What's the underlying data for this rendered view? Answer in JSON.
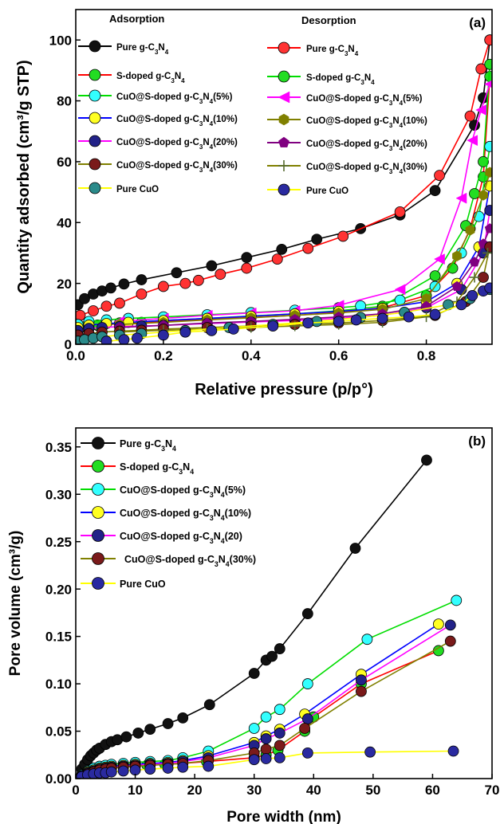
{
  "chart_data": [
    {
      "type": "line",
      "panel_label": "(a)",
      "xlabel": "Relative pressure (p/p°)",
      "ylabel": "Quantity adsorbed (cm³/g STP)",
      "xlim": [
        0,
        0.95
      ],
      "ylim": [
        0,
        110
      ],
      "xticks": [
        "0.0",
        "0.2",
        "0.4",
        "0.6",
        "0.8"
      ],
      "xtick_values": [
        0,
        0.2,
        0.4,
        0.6,
        0.8
      ],
      "yticks": [
        "0",
        "20",
        "40",
        "60",
        "80",
        "100"
      ],
      "ytick_values": [
        0,
        20,
        40,
        60,
        80,
        100
      ],
      "legend_headers": {
        "adsorption": "Adsorption",
        "desorption": "Desorption"
      },
      "legend_position": "top-left",
      "grid": false,
      "series": [
        {
          "name": "Pure g-C3N4",
          "branch": "Adsorption",
          "line_color": "#000000",
          "marker_color": "#111111",
          "marker": "circle",
          "x": [
            0.005,
            0.02,
            0.04,
            0.06,
            0.08,
            0.11,
            0.15,
            0.23,
            0.31,
            0.39,
            0.47,
            0.55,
            0.65,
            0.74,
            0.82,
            0.91,
            0.93,
            0.945
          ],
          "y": [
            13,
            15,
            16.5,
            17.5,
            18.5,
            19.8,
            21.2,
            23.5,
            25.8,
            28.5,
            31.2,
            34.5,
            38,
            42.5,
            50.5,
            72,
            81,
            100
          ]
        },
        {
          "name": "Pure g-C3N4",
          "branch": "Desorption",
          "line_color": "#ff0000",
          "marker_color": "#ff3333",
          "marker": "circle",
          "x": [
            0.01,
            0.04,
            0.07,
            0.1,
            0.15,
            0.2,
            0.25,
            0.28,
            0.33,
            0.39,
            0.46,
            0.53,
            0.61,
            0.74,
            0.83,
            0.9,
            0.925,
            0.945
          ],
          "y": [
            9.5,
            11,
            12.5,
            13.5,
            16.5,
            19,
            20,
            21,
            23,
            25,
            28,
            31.5,
            35.5,
            43.5,
            55.5,
            75,
            90.5,
            100
          ]
        },
        {
          "name": "S-doped g-C3N4",
          "branch": "Adsorption",
          "line_color": "#ff0000",
          "marker_color": "#22dd22",
          "marker": "circle",
          "x": [
            0.005,
            0.02,
            0.05,
            0.1,
            0.15,
            0.2,
            0.3,
            0.4,
            0.5,
            0.6,
            0.7,
            0.8,
            0.86,
            0.9,
            0.93,
            0.945
          ],
          "y": [
            5,
            5.8,
            6.2,
            6.8,
            7.2,
            7.5,
            8.2,
            8.8,
            9.5,
            10.5,
            12,
            16,
            25,
            38,
            55,
            88
          ]
        },
        {
          "name": "S-doped g-C3N4",
          "branch": "Desorption",
          "line_color": "#00dd00",
          "marker_color": "#22dd22",
          "marker": "circle",
          "x": [
            0.01,
            0.05,
            0.1,
            0.2,
            0.3,
            0.4,
            0.5,
            0.6,
            0.7,
            0.82,
            0.89,
            0.91,
            0.93,
            0.945
          ],
          "y": [
            5.5,
            6.3,
            7,
            7.8,
            8.5,
            9.3,
            10,
            11,
            12.5,
            22.5,
            39,
            49.5,
            60,
            92
          ]
        },
        {
          "name": "CuO@S-doped g-C3N4(5%)",
          "branch": "Adsorption",
          "line_color": "#00dd00",
          "marker_color": "#33ffff",
          "marker": "circle",
          "x": [
            0.005,
            0.03,
            0.07,
            0.12,
            0.2,
            0.3,
            0.4,
            0.5,
            0.6,
            0.65,
            0.74,
            0.82,
            0.88,
            0.92,
            0.945
          ],
          "y": [
            6.5,
            7.5,
            8,
            8.5,
            9,
            9.7,
            10.4,
            11.2,
            12,
            12.6,
            14.5,
            19,
            30,
            42,
            65
          ]
        },
        {
          "name": "CuO@S-doped g-C3N4(5%)",
          "branch": "Desorption",
          "line_color": "#ff00ff",
          "marker_color": "#ff00ff",
          "marker": "triangle-left",
          "x": [
            0.1,
            0.2,
            0.3,
            0.4,
            0.5,
            0.6,
            0.74,
            0.83,
            0.88,
            0.905,
            0.925,
            0.945
          ],
          "y": [
            7.5,
            8.5,
            9.5,
            10.3,
            11,
            12.8,
            18,
            28,
            48,
            67,
            77,
            85.5
          ]
        },
        {
          "name": "CuO@S-doped g-C3N4(10%)",
          "branch": "Adsorption",
          "line_color": "#0000ff",
          "marker_color": "#ffff22",
          "marker": "circle",
          "x": [
            0.005,
            0.03,
            0.07,
            0.12,
            0.2,
            0.3,
            0.4,
            0.5,
            0.6,
            0.7,
            0.8,
            0.87,
            0.92,
            0.945
          ],
          "y": [
            5.5,
            6.3,
            6.8,
            7.2,
            7.8,
            8.5,
            9.2,
            10,
            10.8,
            11.8,
            14,
            20,
            32,
            52
          ]
        },
        {
          "name": "CuO@S-doped g-C3N4(10%)",
          "branch": "Desorption",
          "line_color": "#808000",
          "marker_color": "#808000",
          "marker": "hexagon",
          "x": [
            0.1,
            0.2,
            0.3,
            0.4,
            0.5,
            0.6,
            0.7,
            0.8,
            0.87,
            0.9,
            0.93,
            0.945
          ],
          "y": [
            6.5,
            7.2,
            8,
            8.7,
            9.5,
            10.3,
            11.5,
            15,
            29,
            37.5,
            49,
            56.5
          ]
        },
        {
          "name": "CuO@S-doped g-C3N4(20%)",
          "branch": "Adsorption",
          "line_color": "#ff00ff",
          "marker_color": "#222288",
          "marker": "circle",
          "x": [
            0.005,
            0.03,
            0.06,
            0.1,
            0.15,
            0.2,
            0.3,
            0.4,
            0.5,
            0.6,
            0.7,
            0.8,
            0.88,
            0.93,
            0.945
          ],
          "y": [
            4.5,
            5.2,
            5.5,
            5.8,
            6,
            6.2,
            6.8,
            7.3,
            7.8,
            8.5,
            9.5,
            12,
            18,
            30,
            44
          ]
        },
        {
          "name": "CuO@S-doped g-C3N4(20%)",
          "branch": "Desorption",
          "line_color": "#800080",
          "marker_color": "#800080",
          "marker": "pentagon",
          "x": [
            0.1,
            0.2,
            0.3,
            0.4,
            0.5,
            0.6,
            0.7,
            0.8,
            0.87,
            0.91,
            0.93,
            0.945
          ],
          "y": [
            5.5,
            6.2,
            7,
            7.5,
            8.2,
            9,
            10,
            12.5,
            19,
            27,
            33,
            38
          ]
        },
        {
          "name": "CuO@S-doped g-C3N4(30%)",
          "branch": "Adsorption",
          "line_color": "#808000",
          "marker_color": "#7a1a1a",
          "marker": "circle",
          "x": [
            0.005,
            0.03,
            0.06,
            0.1,
            0.15,
            0.2,
            0.3,
            0.4,
            0.5,
            0.6,
            0.7,
            0.82,
            0.89,
            0.93,
            0.945
          ],
          "y": [
            3,
            3.5,
            4,
            4.3,
            4.6,
            5,
            5.5,
            6,
            6.5,
            7,
            7.8,
            9.5,
            14,
            22,
            32
          ]
        },
        {
          "name": "CuO@S-doped g-C3N4(30%)",
          "branch": "Desorption",
          "line_color": "#808000",
          "marker_color": "#556b2f",
          "marker": "plus",
          "x": [
            0.1,
            0.2,
            0.3,
            0.4,
            0.5,
            0.6,
            0.7,
            0.8,
            0.87,
            0.91,
            0.94
          ],
          "y": [
            4,
            4.6,
            5,
            5.5,
            6,
            6.5,
            7.2,
            9,
            14,
            22,
            30
          ]
        },
        {
          "name": "Pure CuO",
          "branch": "Adsorption",
          "line_color": "#ffff00",
          "marker_color": "#2a8a8a",
          "marker": "circle",
          "x": [
            0.005,
            0.02,
            0.04,
            0.06,
            0.1,
            0.15,
            0.25,
            0.35,
            0.45,
            0.55,
            0.65,
            0.75,
            0.85,
            0.9,
            0.945
          ],
          "y": [
            1,
            1.5,
            2,
            2.5,
            3,
            3.5,
            4.5,
            5.5,
            6.5,
            7.5,
            8.8,
            10.5,
            13,
            15,
            18
          ]
        },
        {
          "name": "Pure CuO",
          "branch": "Desorption",
          "line_color": "#ffff00",
          "marker_color": "#2a2aa0",
          "marker": "circle",
          "x": [
            0.07,
            0.11,
            0.14,
            0.2,
            0.25,
            0.31,
            0.36,
            0.45,
            0.53,
            0.6,
            0.64,
            0.7,
            0.76,
            0.82,
            0.88,
            0.905,
            0.93,
            0.945
          ],
          "y": [
            1,
            1.5,
            2,
            3,
            4,
            4.5,
            5,
            6,
            7,
            7.5,
            8,
            8.5,
            9,
            9.8,
            13,
            16,
            17.5,
            18.5
          ]
        }
      ]
    },
    {
      "type": "line",
      "panel_label": "(b)",
      "xlabel": "Pore width (nm)",
      "ylabel": "Pore volume (cm³/g)",
      "xlim": [
        0,
        70
      ],
      "ylim": [
        0,
        0.37
      ],
      "xticks": [
        "0",
        "10",
        "20",
        "30",
        "40",
        "50",
        "60",
        "70"
      ],
      "xtick_values": [
        0,
        10,
        20,
        30,
        40,
        50,
        60,
        70
      ],
      "yticks": [
        "0.00",
        "0.05",
        "0.10",
        "0.15",
        "0.20",
        "0.25",
        "0.30",
        "0.35"
      ],
      "ytick_values": [
        0,
        0.05,
        0.1,
        0.15,
        0.2,
        0.25,
        0.3,
        0.35
      ],
      "legend_position": "top-left",
      "grid": false,
      "series": [
        {
          "name": "Pure g-C3N4",
          "line_color": "#000000",
          "marker_color": "#111111",
          "marker": "circle",
          "x": [
            1,
            1.5,
            2,
            2.5,
            3,
            3.5,
            4,
            5,
            6,
            7,
            8.5,
            10.5,
            12.5,
            15.5,
            18,
            22.5,
            30,
            32,
            33,
            34.3,
            39,
            47,
            59
          ],
          "y": [
            0.01,
            0.015,
            0.02,
            0.024,
            0.027,
            0.03,
            0.032,
            0.036,
            0.039,
            0.041,
            0.044,
            0.048,
            0.052,
            0.058,
            0.064,
            0.078,
            0.111,
            0.125,
            0.129,
            0.137,
            0.174,
            0.243,
            0.336
          ]
        },
        {
          "name": "S-doped g-C3N4",
          "line_color": "#ff0000",
          "marker_color": "#22dd22",
          "marker": "circle",
          "x": [
            1,
            2,
            3,
            4,
            5,
            6,
            8,
            10,
            12,
            15,
            18,
            22,
            30,
            32,
            34,
            38.5,
            40,
            48,
            61
          ],
          "y": [
            0.003,
            0.006,
            0.008,
            0.009,
            0.01,
            0.011,
            0.012,
            0.013,
            0.014,
            0.015,
            0.016,
            0.018,
            0.022,
            0.025,
            0.03,
            0.05,
            0.065,
            0.1,
            0.135
          ]
        },
        {
          "name": "CuO@S-doped g-C3N4(5%)",
          "line_color": "#00dd00",
          "marker_color": "#33ffff",
          "marker": "circle",
          "x": [
            1,
            2,
            3,
            4,
            5,
            6,
            8,
            10,
            12.5,
            15.5,
            18,
            22.3,
            30,
            32,
            34.3,
            39,
            49,
            64
          ],
          "y": [
            0.004,
            0.008,
            0.011,
            0.013,
            0.014,
            0.015,
            0.016,
            0.017,
            0.018,
            0.019,
            0.022,
            0.029,
            0.053,
            0.065,
            0.073,
            0.1,
            0.147,
            0.188
          ]
        },
        {
          "name": "CuO@S-doped g-C3N4(10%)",
          "line_color": "#0000ff",
          "marker_color": "#ffff22",
          "marker": "circle",
          "x": [
            1,
            2,
            3,
            4,
            5,
            6,
            8,
            10,
            12.5,
            15.5,
            18,
            22.3,
            30,
            32,
            34.3,
            38.5,
            48,
            61
          ],
          "y": [
            0.003,
            0.007,
            0.009,
            0.011,
            0.012,
            0.013,
            0.014,
            0.015,
            0.016,
            0.017,
            0.019,
            0.024,
            0.038,
            0.045,
            0.052,
            0.068,
            0.11,
            0.163
          ]
        },
        {
          "name": "CuO@S-doped g-C3N4(20)",
          "line_color": "#ff00ff",
          "marker_color": "#222288",
          "marker": "circle",
          "x": [
            1,
            2,
            3,
            4,
            5,
            6,
            8,
            10,
            12.5,
            15.5,
            18,
            22.3,
            30,
            32,
            34.3,
            39,
            48,
            63
          ],
          "y": [
            0.003,
            0.006,
            0.008,
            0.01,
            0.011,
            0.012,
            0.013,
            0.014,
            0.015,
            0.016,
            0.018,
            0.022,
            0.035,
            0.042,
            0.048,
            0.063,
            0.104,
            0.162
          ]
        },
        {
          "name": "CuO@S-doped g-C3N4(30%)",
          "line_color": "#808000",
          "marker_color": "#7a1a1a",
          "marker": "circle",
          "x": [
            1,
            2,
            3,
            4,
            5,
            6,
            8,
            10,
            12.5,
            15.5,
            18,
            22.3,
            30,
            32,
            34.3,
            38.5,
            48,
            63
          ],
          "y": [
            0.002,
            0.005,
            0.007,
            0.009,
            0.01,
            0.011,
            0.012,
            0.013,
            0.014,
            0.015,
            0.016,
            0.019,
            0.027,
            0.031,
            0.035,
            0.053,
            0.092,
            0.145
          ]
        },
        {
          "name": "Pure CuO",
          "line_color": "#ffff00",
          "marker_color": "#2a2aa0",
          "marker": "circle",
          "x": [
            1,
            2,
            3,
            4,
            5,
            6,
            8,
            10,
            12.5,
            15.5,
            18,
            22.3,
            30,
            32,
            34.3,
            39,
            49.5,
            63.5
          ],
          "y": [
            0.002,
            0.004,
            0.005,
            0.006,
            0.006,
            0.007,
            0.008,
            0.009,
            0.01,
            0.011,
            0.012,
            0.013,
            0.02,
            0.021,
            0.022,
            0.027,
            0.028,
            0.029
          ]
        }
      ]
    }
  ]
}
